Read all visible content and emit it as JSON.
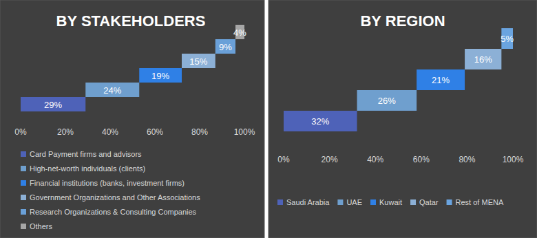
{
  "chart_data": [
    {
      "type": "waterfall",
      "title": "BY STAKEHOLDERS",
      "orientation": "horizontal",
      "categories": [
        "Card Payment firms and advisors",
        "High-net-worth individuals (clients)",
        "Financial institutions (banks, investment firms)",
        "Government Organizations and Other Associations",
        "Research Organizations & Consulting Companies",
        "Others"
      ],
      "values": [
        29,
        24,
        19,
        15,
        9,
        4
      ],
      "value_labels": [
        "29%",
        "24%",
        "19%",
        "15%",
        "9%",
        "4%"
      ],
      "colors": [
        "#4e62b8",
        "#6f9fce",
        "#2f80e6",
        "#8cb0d6",
        "#6aa0d8",
        "#a6a6a6"
      ],
      "xlim": [
        0,
        100
      ],
      "xticks": [
        {
          "value": 0,
          "label": "0%"
        },
        {
          "value": 20,
          "label": "20%"
        },
        {
          "value": 40,
          "label": "40%"
        },
        {
          "value": 60,
          "label": "60%"
        },
        {
          "value": 80,
          "label": "80%"
        },
        {
          "value": 100,
          "label": "100%"
        }
      ],
      "data_labels": true,
      "legend": "bottom",
      "grid": false
    },
    {
      "type": "waterfall",
      "title": "BY REGION",
      "orientation": "horizontal",
      "categories": [
        "Saudi Arabia",
        "UAE",
        "Kuwait",
        "Qatar",
        "Rest of MENA"
      ],
      "values": [
        32,
        26,
        21,
        16,
        5
      ],
      "value_labels": [
        "32%",
        "26%",
        "21%",
        "16%",
        "5%"
      ],
      "colors": [
        "#4e62b8",
        "#6f9fce",
        "#2f80e6",
        "#8cb0d6",
        "#6aa4e0"
      ],
      "xlim": [
        0,
        100
      ],
      "xticks": [
        {
          "value": 0,
          "label": "0%"
        },
        {
          "value": 20,
          "label": "20%"
        },
        {
          "value": 40,
          "label": "40%"
        },
        {
          "value": 60,
          "label": "60%"
        },
        {
          "value": 80,
          "label": "80%"
        },
        {
          "value": 100,
          "label": "100%"
        }
      ],
      "data_labels": true,
      "legend": "bottom",
      "grid": false
    }
  ]
}
